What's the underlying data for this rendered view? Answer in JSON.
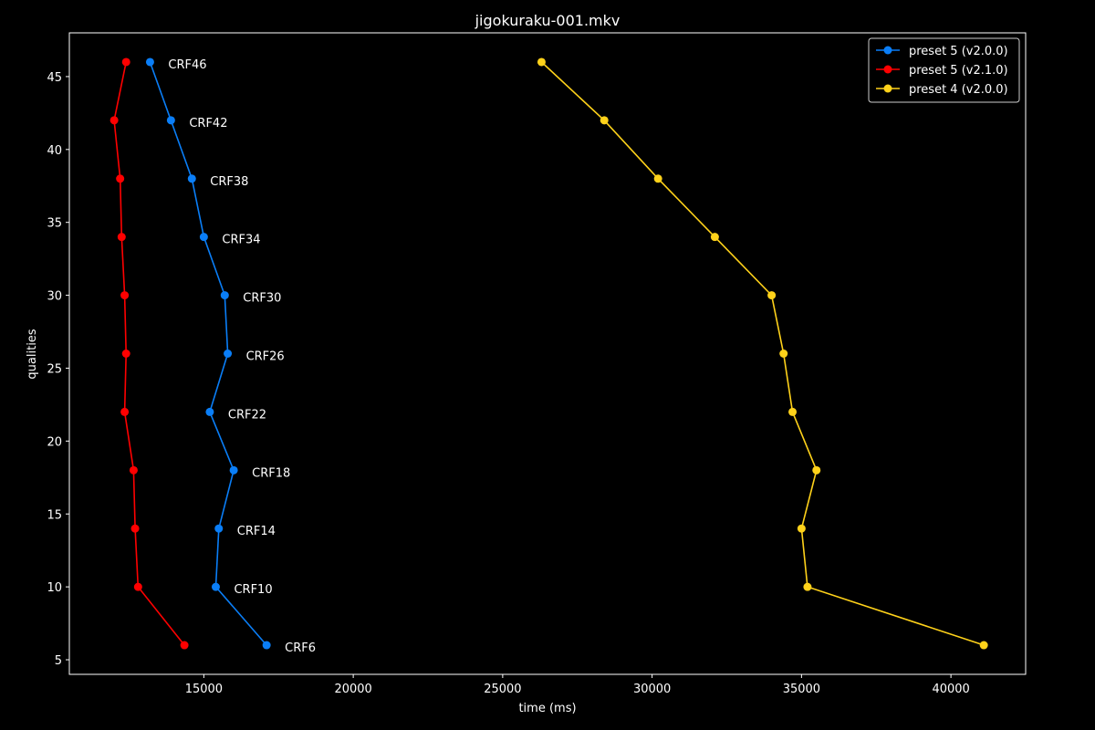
{
  "chart_data": {
    "type": "line",
    "title": "jigokuraku-001.mkv",
    "xlabel": "time (ms)",
    "ylabel": "qualities",
    "xlim": [
      10500,
      42500
    ],
    "ylim": [
      4,
      48
    ],
    "xticks": [
      15000,
      20000,
      25000,
      30000,
      35000,
      40000
    ],
    "yticks": [
      5,
      10,
      15,
      20,
      25,
      30,
      35,
      40,
      45
    ],
    "grid": false,
    "legend_position": "top-right",
    "background": "#000000",
    "series": [
      {
        "name": "preset 5 (v2.0.0)",
        "color": "#0a7ef7",
        "x": [
          13200,
          13900,
          14600,
          15000,
          15700,
          15800,
          15200,
          16000,
          15500,
          15400,
          17100
        ],
        "y": [
          46,
          42,
          38,
          34,
          30,
          26,
          22,
          18,
          14,
          10,
          6
        ]
      },
      {
        "name": "preset 5 (v2.1.0)",
        "color": "#ff0000",
        "x": [
          12400,
          12000,
          12200,
          12250,
          12350,
          12400,
          12350,
          12650,
          12700,
          12800,
          14350
        ],
        "y": [
          46,
          42,
          38,
          34,
          30,
          26,
          22,
          18,
          14,
          10,
          6
        ]
      },
      {
        "name": "preset 4 (v2.0.0)",
        "color": "#ffd21a",
        "x": [
          26300,
          28400,
          30200,
          32100,
          34000,
          34400,
          34700,
          35500,
          35000,
          35200,
          41100
        ],
        "y": [
          46,
          42,
          38,
          34,
          30,
          26,
          22,
          18,
          14,
          10,
          6
        ]
      }
    ],
    "annotations": [
      {
        "text": "CRF46",
        "x": 13200,
        "y": 46
      },
      {
        "text": "CRF42",
        "x": 13900,
        "y": 42
      },
      {
        "text": "CRF38",
        "x": 14600,
        "y": 38
      },
      {
        "text": "CRF34",
        "x": 15000,
        "y": 34
      },
      {
        "text": "CRF30",
        "x": 15700,
        "y": 30
      },
      {
        "text": "CRF26",
        "x": 15800,
        "y": 26
      },
      {
        "text": "CRF22",
        "x": 15200,
        "y": 22
      },
      {
        "text": "CRF18",
        "x": 16000,
        "y": 18
      },
      {
        "text": "CRF14",
        "x": 15500,
        "y": 14
      },
      {
        "text": "CRF10",
        "x": 15400,
        "y": 10
      },
      {
        "text": "CRF6",
        "x": 17100,
        "y": 6
      }
    ]
  }
}
